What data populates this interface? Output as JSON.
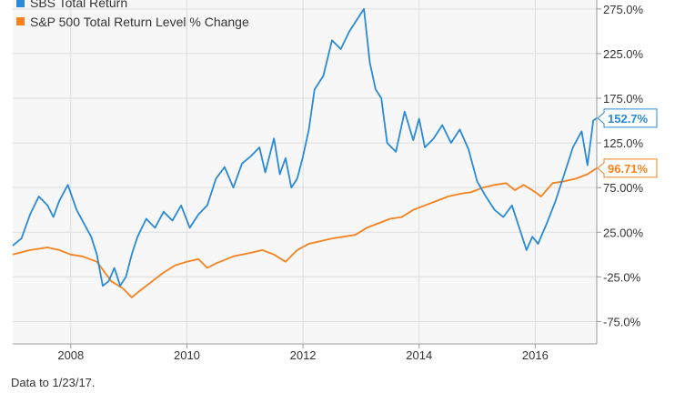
{
  "chart_data": {
    "type": "line",
    "title": "",
    "xlabel": "",
    "ylabel": "",
    "xlim": [
      2007.0,
      2017.06
    ],
    "ylim": [
      -100,
      285
    ],
    "x_ticks": [
      2008,
      2010,
      2012,
      2014,
      2016
    ],
    "x_tick_labels": [
      "2008",
      "2010",
      "2012",
      "2014",
      "2016"
    ],
    "y_ticks": [
      275,
      225,
      175,
      125,
      75,
      25,
      -25,
      -75
    ],
    "y_tick_labels": [
      "275.0%",
      "225.0%",
      "175.0%",
      "125.0%",
      "75.00%",
      "25.00%",
      "-25.0%",
      "-75.0%"
    ],
    "grid": true,
    "legend_position": "top-left",
    "series": [
      {
        "name": "SBS Total Return",
        "color": "#2a8ad6",
        "end_label": "152.7%",
        "x": [
          2007.0,
          2007.15,
          2007.3,
          2007.45,
          2007.6,
          2007.7,
          2007.8,
          2007.95,
          2008.1,
          2008.25,
          2008.35,
          2008.45,
          2008.55,
          2008.65,
          2008.75,
          2008.85,
          2008.95,
          2009.05,
          2009.15,
          2009.3,
          2009.45,
          2009.6,
          2009.75,
          2009.9,
          2010.05,
          2010.2,
          2010.35,
          2010.5,
          2010.65,
          2010.8,
          2010.95,
          2011.1,
          2011.25,
          2011.35,
          2011.5,
          2011.6,
          2011.7,
          2011.8,
          2011.9,
          2012.0,
          2012.1,
          2012.2,
          2012.35,
          2012.5,
          2012.65,
          2012.8,
          2012.95,
          2013.05,
          2013.15,
          2013.25,
          2013.35,
          2013.45,
          2013.6,
          2013.75,
          2013.9,
          2014.0,
          2014.1,
          2014.25,
          2014.4,
          2014.55,
          2014.7,
          2014.85,
          2015.0,
          2015.15,
          2015.3,
          2015.45,
          2015.6,
          2015.75,
          2015.85,
          2015.95,
          2016.05,
          2016.2,
          2016.35,
          2016.5,
          2016.65,
          2016.8,
          2016.9,
          2017.0,
          2017.06
        ],
        "values": [
          10,
          18,
          45,
          65,
          55,
          42,
          60,
          78,
          50,
          32,
          20,
          0,
          -35,
          -30,
          -15,
          -35,
          -25,
          0,
          20,
          40,
          30,
          48,
          38,
          55,
          30,
          45,
          55,
          85,
          98,
          75,
          102,
          110,
          120,
          92,
          130,
          90,
          108,
          75,
          85,
          110,
          140,
          185,
          200,
          240,
          230,
          250,
          265,
          275,
          215,
          185,
          175,
          125,
          115,
          160,
          128,
          152,
          120,
          130,
          145,
          125,
          140,
          118,
          82,
          65,
          50,
          42,
          55,
          25,
          5,
          20,
          12,
          35,
          60,
          90,
          120,
          138,
          100,
          150,
          152.7
        ]
      },
      {
        "name": "S&P 500 Total Return Level % Change",
        "color": "#f5821f",
        "end_label": "96.71%",
        "x": [
          2007.0,
          2007.3,
          2007.6,
          2007.8,
          2008.0,
          2008.2,
          2008.45,
          2008.7,
          2008.9,
          2009.05,
          2009.2,
          2009.4,
          2009.6,
          2009.8,
          2010.0,
          2010.2,
          2010.35,
          2010.5,
          2010.8,
          2011.1,
          2011.3,
          2011.5,
          2011.7,
          2011.9,
          2012.1,
          2012.3,
          2012.5,
          2012.7,
          2012.9,
          2013.1,
          2013.3,
          2013.5,
          2013.7,
          2013.9,
          2014.1,
          2014.3,
          2014.5,
          2014.7,
          2014.9,
          2015.1,
          2015.3,
          2015.5,
          2015.65,
          2015.8,
          2016.0,
          2016.1,
          2016.3,
          2016.5,
          2016.7,
          2016.9,
          2017.06
        ],
        "values": [
          0,
          5,
          8,
          5,
          0,
          -2,
          -8,
          -30,
          -38,
          -48,
          -40,
          -30,
          -20,
          -12,
          -8,
          -5,
          -15,
          -10,
          -2,
          2,
          5,
          0,
          -8,
          5,
          12,
          15,
          18,
          20,
          22,
          30,
          35,
          40,
          42,
          50,
          55,
          60,
          65,
          68,
          70,
          75,
          78,
          80,
          72,
          78,
          70,
          65,
          80,
          82,
          85,
          90,
          96.71
        ]
      }
    ]
  },
  "footnote": "Data to 1/23/17."
}
